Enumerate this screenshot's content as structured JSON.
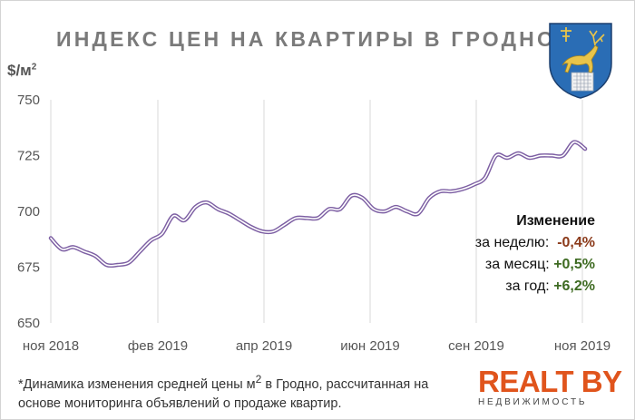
{
  "header": {
    "title": "ИНДЕКС ЦЕН НА КВАРТИРЫ В ГРОДНО",
    "unit_prefix": "$/м",
    "unit_sup": "2"
  },
  "colors": {
    "line_outer": "#7d5fa3",
    "line_inner": "#ffffff",
    "grid": "#d9d9d9",
    "negative": "#8b3a1a",
    "positive": "#3e6b22",
    "logo": "#e0541c"
  },
  "chart_data": {
    "type": "line",
    "title": "ИНДЕКС ЦЕН НА КВАРТИРЫ В ГРОДНО",
    "ylabel": "$/м2",
    "xlabel": "",
    "ylim": [
      650,
      750
    ],
    "yticks": [
      650,
      675,
      700,
      725,
      750
    ],
    "grid": "vertical",
    "x_tick_labels": [
      "ноя 2018",
      "фев 2019",
      "апр 2019",
      "июн 2019",
      "сен 2019",
      "ноя 2019"
    ],
    "series": [
      {
        "values": [
          688,
          683,
          684,
          682,
          680,
          676,
          676,
          677,
          682,
          687,
          690,
          698,
          696,
          702,
          704,
          701,
          699,
          696,
          693,
          691,
          691,
          694,
          697,
          697,
          697,
          701,
          701,
          707,
          706,
          701,
          700,
          702,
          700,
          699,
          706,
          709,
          709,
          710,
          712,
          715,
          725,
          724,
          726,
          724,
          725,
          725,
          725,
          731,
          728
        ]
      }
    ]
  },
  "change_box": {
    "heading": "Изменение",
    "week_label": "за неделю:",
    "week_value": "-0,4%",
    "month_label": "за месяц:",
    "month_value": "+0,5%",
    "year_label": "за год:",
    "year_value": "+6,2%"
  },
  "footnote": {
    "text_before": "*Динамика изменения средней цены м",
    "text_sup": "2",
    "text_after": " в Гродно, рассчитанная на основе мониторинга объявлений о продаже квартир."
  },
  "logo": {
    "name": "REALT BY",
    "subtitle": "НЕДВИЖИМОСТЬ"
  },
  "emblem": {
    "icon": "grodno-coat-of-arms-icon"
  }
}
